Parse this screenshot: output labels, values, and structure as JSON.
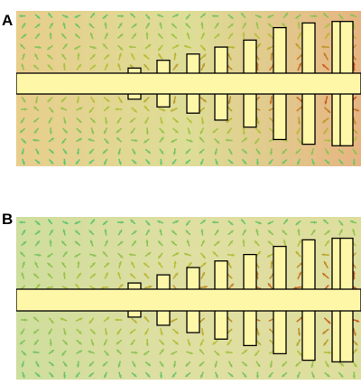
{
  "panels": [
    {
      "id": "a",
      "label": "A",
      "fields": "panel-a"
    },
    {
      "id": "b",
      "label": "B",
      "fields": "panel-b"
    }
  ],
  "colors": {
    "background": "#ffffff",
    "field_bg": "#e8e4b0",
    "strip_fill": "#fff7a8",
    "stroke": "#000000",
    "low": "#23c79a",
    "mid": "#b7c23a",
    "high": "#d23a12"
  },
  "slab_profile_a": [
    0.08,
    0.11,
    0.2,
    0.3,
    0.38,
    0.47,
    0.56,
    0.72,
    0.78,
    0.8,
    0.8
  ],
  "slab_profile_b": [
    0.06,
    0.11,
    0.21,
    0.31,
    0.4,
    0.48,
    0.56,
    0.66,
    0.74,
    0.76,
    0.76
  ]
}
